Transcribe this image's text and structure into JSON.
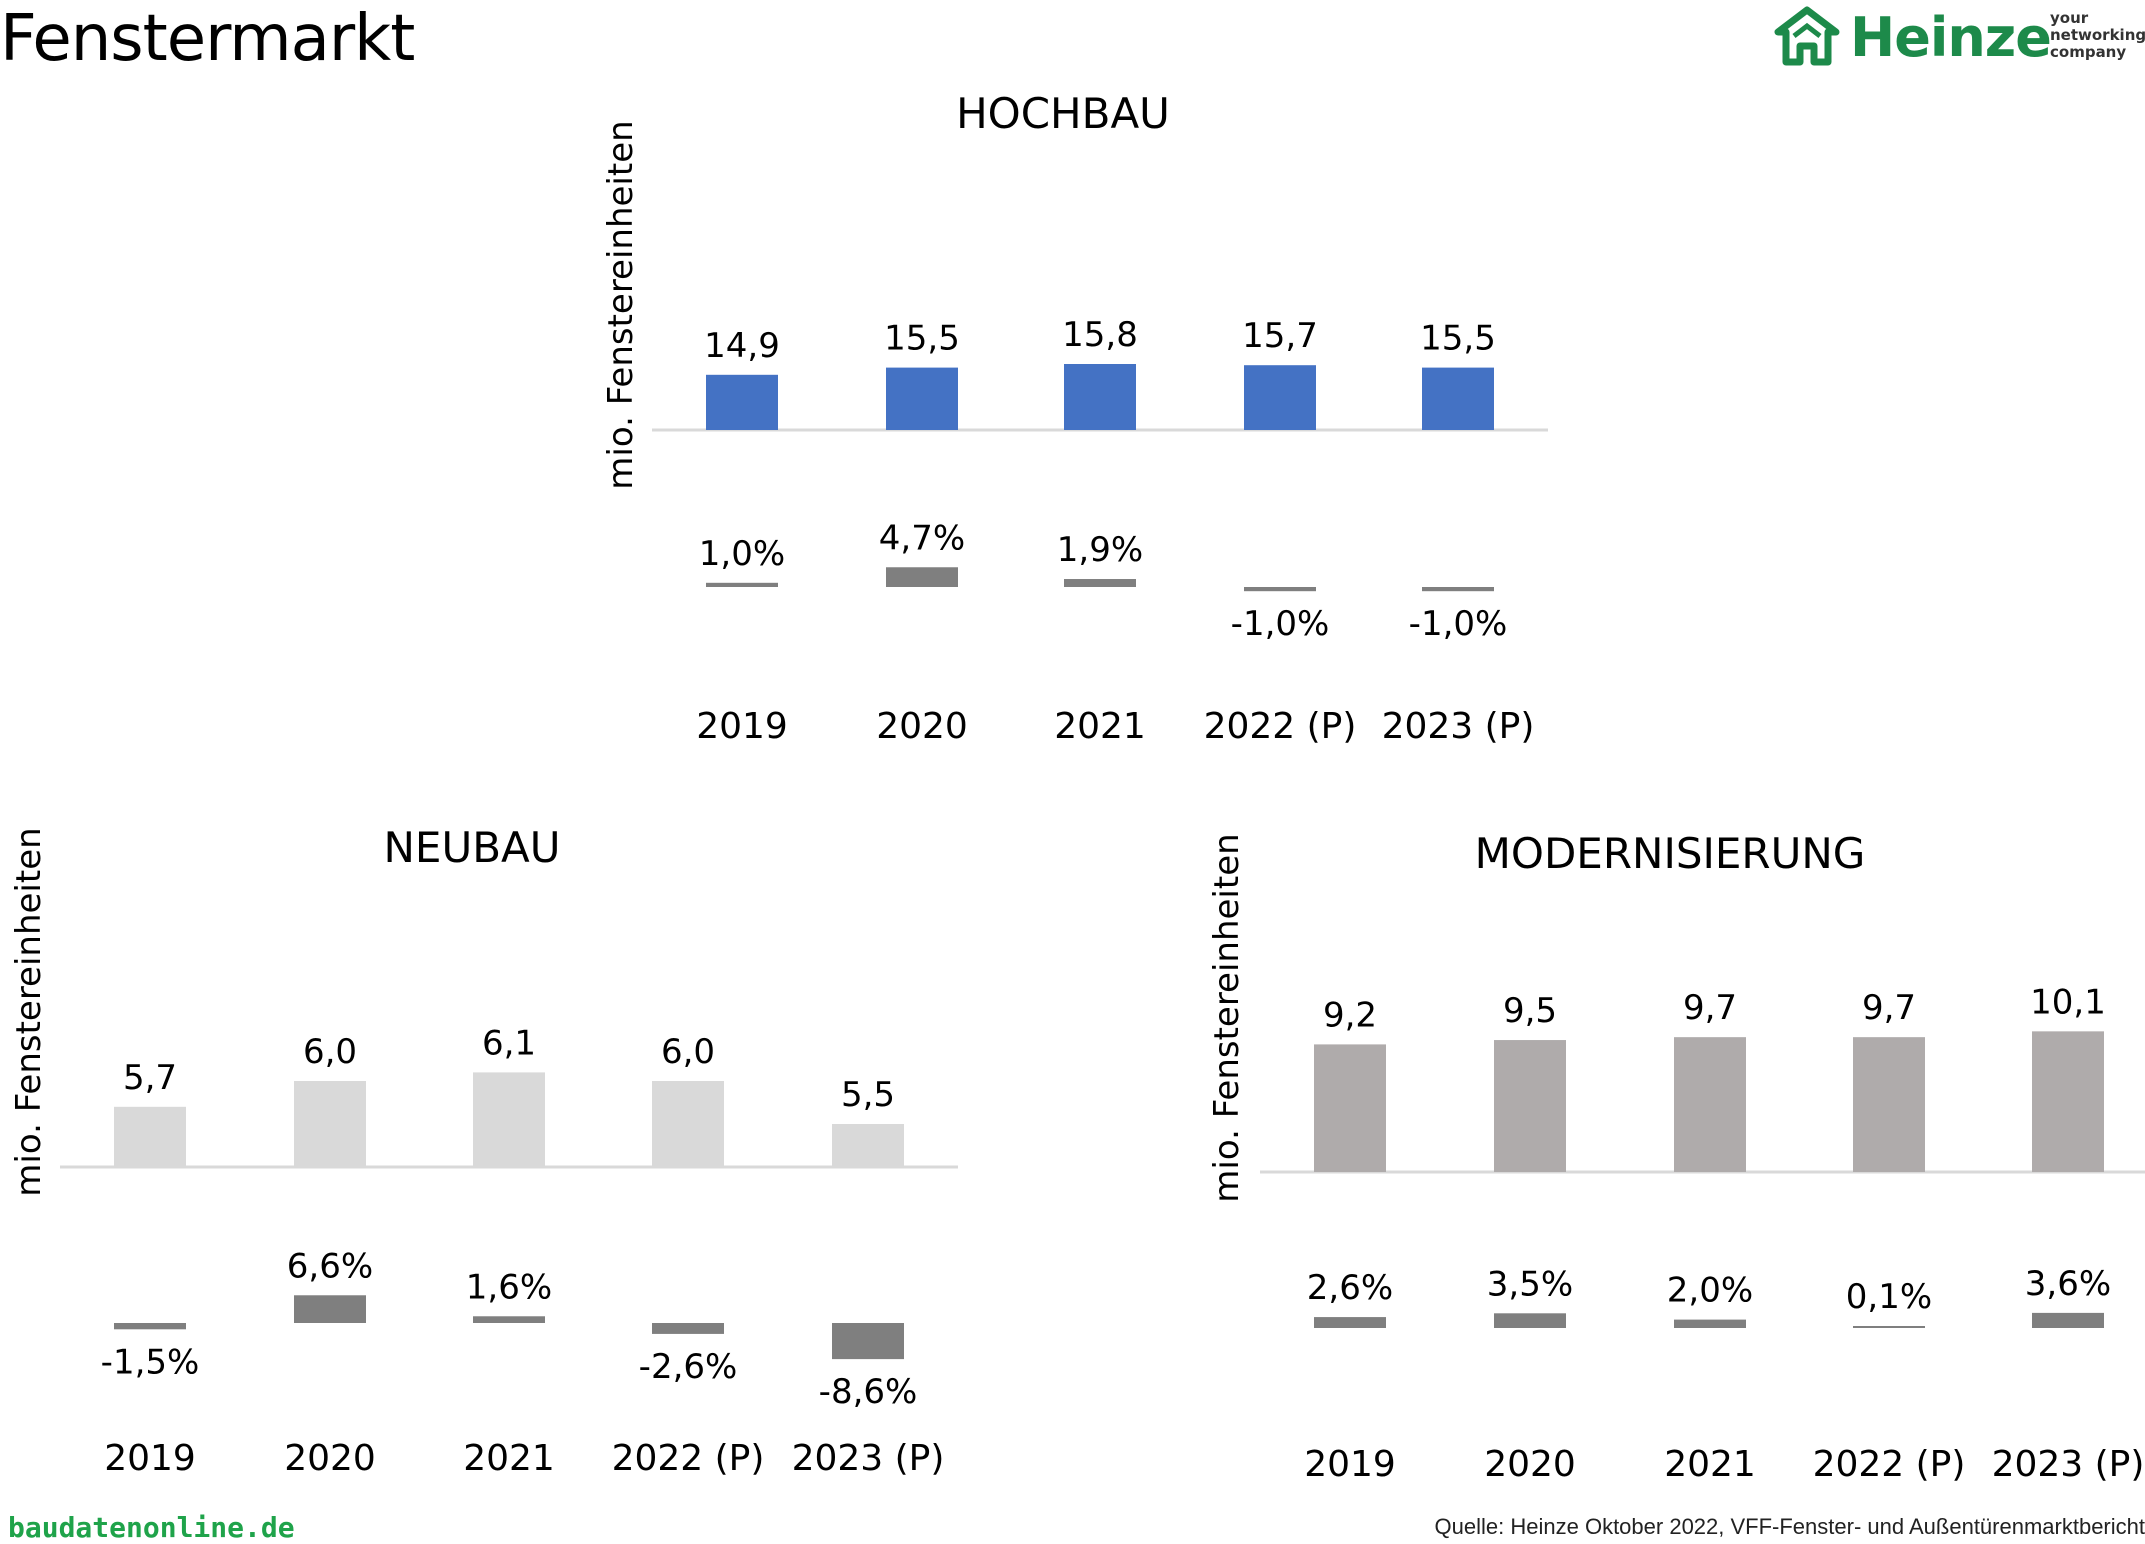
{
  "page": {
    "title": "Fenstermarkt",
    "logo": {
      "word": "Heinze",
      "tagline": [
        "your",
        "networking",
        "company"
      ]
    },
    "footer_left": "baudatenonline.de",
    "footer_right": "Quelle: Heinze Oktober 2022, VFF-Fenster- und Außentürenmarktbericht"
  },
  "colors": {
    "hochbau_bar": "#4472c4",
    "neubau_bar": "#d9d9d9",
    "modernisierung_bar": "#afabab",
    "change_bar": "#7f7f7f",
    "axis_line": "#d9d9d9",
    "brand_green": "#1d8a4a"
  },
  "chart_data": [
    {
      "id": "hochbau",
      "type": "bar",
      "title": "HOCHBAU",
      "ylabel": "mio. Fenstereinheiten",
      "categories": [
        "2019",
        "2020",
        "2021",
        "2022 (P)",
        "2023 (P)"
      ],
      "values": [
        14.9,
        15.5,
        15.8,
        15.7,
        15.5
      ],
      "value_labels": [
        "14,9",
        "15,5",
        "15,8",
        "15,7",
        "15,5"
      ],
      "change_pct": [
        1.0,
        4.7,
        1.9,
        -1.0,
        -1.0
      ],
      "change_labels": [
        "1,0%",
        "4,7%",
        "1,9%",
        "-1,0%",
        "-1,0%"
      ]
    },
    {
      "id": "neubau",
      "type": "bar",
      "title": "NEUBAU",
      "ylabel": "mio. Fenstereinheiten",
      "categories": [
        "2019",
        "2020",
        "2021",
        "2022 (P)",
        "2023 (P)"
      ],
      "values": [
        5.7,
        6.0,
        6.1,
        6.0,
        5.5
      ],
      "value_labels": [
        "5,7",
        "6,0",
        "6,1",
        "6,0",
        "5,5"
      ],
      "change_pct": [
        -1.5,
        6.6,
        1.6,
        -2.6,
        -8.6
      ],
      "change_labels": [
        "-1,5%",
        "6,6%",
        "1,6%",
        "-2,6%",
        "-8,6%"
      ]
    },
    {
      "id": "modernisierung",
      "type": "bar",
      "title": "MODERNISIERUNG",
      "ylabel": "mio. Fenstereinheiten",
      "categories": [
        "2019",
        "2020",
        "2021",
        "2022 (P)",
        "2023 (P)"
      ],
      "values": [
        9.2,
        9.5,
        9.7,
        9.7,
        10.1
      ],
      "value_labels": [
        "9,2",
        "9,5",
        "9,7",
        "9,7",
        "10,1"
      ],
      "change_pct": [
        2.6,
        3.5,
        2.0,
        0.1,
        3.6
      ],
      "change_labels": [
        "2,6%",
        "3,5%",
        "2,0%",
        "0,1%",
        "3,6%"
      ]
    }
  ]
}
